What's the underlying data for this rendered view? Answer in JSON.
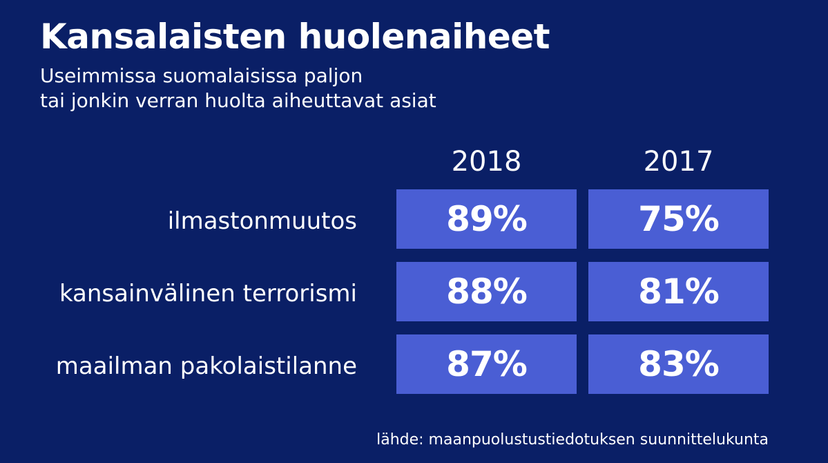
{
  "title": "Kansalaisten huolenaiheet",
  "subtitle_lines": [
    "Useimmissa suomalaisissa paljon",
    "tai jonkin verran huolta aiheuttavat asiat"
  ],
  "source": "lähde: maanpuolustustiedotuksen suunnittelukunta",
  "colors": {
    "background": "#0a1f66",
    "cell": "#4a5ed4",
    "text": "#ffffff"
  },
  "chart_data": {
    "type": "table",
    "title": "Kansalaisten huolenaiheet",
    "subtitle": "Useimmissa suomalaisissa paljon tai jonkin verran huolta aiheuttavat asiat",
    "columns": [
      "2018",
      "2017"
    ],
    "rows": [
      {
        "label": "ilmastonmuutos",
        "values": [
          89,
          75
        ],
        "display": [
          "89%",
          "75%"
        ]
      },
      {
        "label": "kansainvälinen terrorismi",
        "values": [
          88,
          81
        ],
        "display": [
          "88%",
          "81%"
        ]
      },
      {
        "label": "maailman pakolaistilanne",
        "values": [
          87,
          83
        ],
        "display": [
          "87%",
          "83%"
        ]
      }
    ],
    "unit": "%"
  }
}
